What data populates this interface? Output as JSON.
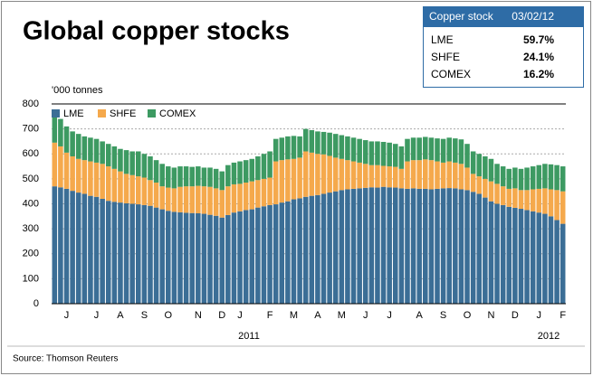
{
  "chart_data": {
    "type": "stacked-bar",
    "title": "Global copper stocks",
    "y_label": "'000 tonnes",
    "source": "Source: Thomson Reuters",
    "categories": [
      null,
      null,
      "J",
      null,
      null,
      null,
      null,
      "J",
      null,
      null,
      null,
      "A",
      null,
      null,
      null,
      "S",
      null,
      null,
      null,
      "O",
      null,
      null,
      null,
      null,
      "N",
      null,
      null,
      null,
      "D",
      null,
      null,
      "J",
      null,
      null,
      null,
      null,
      "F",
      null,
      null,
      null,
      "M",
      null,
      null,
      null,
      "A",
      null,
      null,
      null,
      "M",
      null,
      null,
      null,
      "J",
      null,
      null,
      null,
      "J",
      null,
      null,
      null,
      null,
      "A",
      null,
      null,
      null,
      "S",
      null,
      null,
      null,
      "O",
      null,
      null,
      null,
      "N",
      null,
      null,
      null,
      "D",
      null,
      null,
      null,
      "J",
      null,
      null,
      null,
      "F"
    ],
    "year_labels": [
      "2011",
      "2012"
    ],
    "series": [
      {
        "name": "LME",
        "color": "#3b6e96",
        "values": [
          470,
          466,
          460,
          452,
          445,
          440,
          432,
          428,
          420,
          412,
          408,
          405,
          402,
          400,
          398,
          395,
          392,
          385,
          378,
          372,
          368,
          366,
          364,
          363,
          362,
          360,
          356,
          352,
          345,
          355,
          365,
          370,
          375,
          378,
          385,
          390,
          395,
          398,
          405,
          410,
          418,
          422,
          428,
          432,
          435,
          440,
          445,
          450,
          455,
          458,
          460,
          462,
          464,
          466,
          465,
          468,
          466,
          465,
          462,
          460,
          462,
          460,
          460,
          458,
          460,
          462,
          463,
          462,
          458,
          455,
          448,
          440,
          425,
          410,
          400,
          395,
          388,
          384,
          380,
          375,
          370,
          365,
          360,
          350,
          335,
          320
        ]
      },
      {
        "name": "SHFE",
        "color": "#f5a94c",
        "values": [
          175,
          164,
          145,
          138,
          135,
          135,
          138,
          137,
          140,
          138,
          132,
          125,
          118,
          115,
          112,
          110,
          103,
          100,
          92,
          93,
          94,
          102,
          106,
          107,
          110,
          110,
          112,
          110,
          110,
          115,
          113,
          110,
          110,
          112,
          110,
          110,
          110,
          172,
          170,
          168,
          162,
          163,
          182,
          173,
          165,
          158,
          147,
          135,
          125,
          117,
          110,
          103,
          96,
          89,
          90,
          84,
          84,
          83,
          78,
          110,
          113,
          115,
          118,
          117,
          110,
          103,
          107,
          103,
          102,
          90,
          72,
          70,
          75,
          80,
          80,
          75,
          72,
          78,
          75,
          80,
          88,
          95,
          102,
          108,
          120,
          130
        ]
      },
      {
        "name": "COMEX",
        "color": "#3d9a62",
        "values": [
          115,
          110,
          105,
          100,
          100,
          95,
          95,
          95,
          90,
          90,
          90,
          90,
          95,
          95,
          100,
          95,
          95,
          90,
          90,
          85,
          83,
          82,
          80,
          78,
          78,
          75,
          77,
          78,
          75,
          85,
          87,
          90,
          90,
          90,
          95,
          100,
          105,
          90,
          90,
          92,
          92,
          85,
          90,
          90,
          90,
          90,
          93,
          95,
          95,
          95,
          95,
          95,
          95,
          95,
          95,
          96,
          95,
          92,
          90,
          90,
          90,
          90,
          90,
          90,
          92,
          95,
          95,
          97,
          98,
          95,
          90,
          90,
          90,
          90,
          80,
          80,
          80,
          83,
          85,
          90,
          92,
          95,
          98,
          100,
          100,
          100
        ]
      }
    ],
    "ylim": [
      0,
      800
    ],
    "yticks": [
      0,
      100,
      200,
      300,
      400,
      500,
      600,
      700,
      800
    ],
    "grid": true,
    "summary": {
      "title": "Copper stock",
      "date": "03/02/12",
      "rows": [
        [
          "LME",
          "59.7%"
        ],
        [
          "SHFE",
          "24.1%"
        ],
        [
          "COMEX",
          "16.2%"
        ]
      ]
    }
  }
}
